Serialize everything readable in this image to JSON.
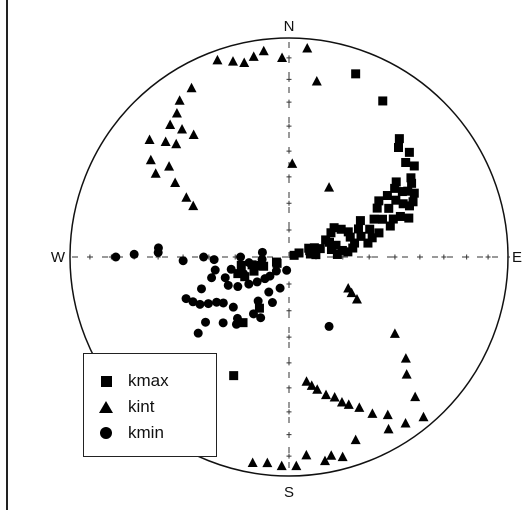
{
  "chart_data": {
    "type": "scatter",
    "projection": "lower-hemisphere stereonet",
    "directions": {
      "north": "N",
      "south": "S",
      "east": "E",
      "west": "W"
    },
    "series": [
      {
        "name": "kmax",
        "marker": "square",
        "points": [
          [
            20,
            12
          ],
          [
            31,
            18
          ],
          [
            43,
            27
          ],
          [
            45,
            30
          ],
          [
            49,
            28
          ],
          [
            54,
            30
          ],
          [
            51,
            32
          ],
          [
            57,
            34
          ],
          [
            59,
            35
          ],
          [
            61,
            38
          ],
          [
            63,
            36
          ],
          [
            66,
            38
          ],
          [
            60,
            40
          ],
          [
            57,
            42
          ],
          [
            55,
            40
          ],
          [
            62,
            44
          ],
          [
            65,
            42
          ],
          [
            67,
            40
          ],
          [
            70,
            45
          ],
          [
            72,
            42
          ],
          [
            70,
            48
          ],
          [
            73,
            50
          ],
          [
            64,
            48
          ],
          [
            58,
            46
          ],
          [
            68,
            52
          ],
          [
            75,
            55
          ],
          [
            77,
            58
          ],
          [
            80,
            60
          ],
          [
            71,
            58
          ],
          [
            66,
            55
          ],
          [
            61,
            52
          ],
          [
            58,
            50
          ],
          [
            63,
            60
          ],
          [
            68,
            62
          ],
          [
            74,
            62
          ],
          [
            78,
            65
          ],
          [
            82,
            66
          ],
          [
            85,
            68
          ],
          [
            72,
            66
          ],
          [
            67,
            66
          ],
          [
            62,
            68
          ],
          [
            57,
            70
          ],
          [
            76,
            72
          ],
          [
            80,
            74
          ],
          [
            87,
            72
          ],
          [
            70,
            74
          ],
          [
            83,
            70
          ],
          [
            65,
            75
          ],
          [
            60,
            72
          ],
          [
            75,
            78
          ],
          [
            78,
            80
          ],
          [
            85,
            80
          ],
          [
            70,
            80
          ],
          [
            82,
            82
          ],
          [
            73,
            82
          ],
          [
            66,
            82
          ],
          [
            68,
            86
          ],
          [
            72,
            88
          ],
          [
            68,
            95
          ],
          [
            62,
            95
          ],
          [
            70,
            100
          ],
          [
            74,
            102
          ],
          [
            68,
            104
          ],
          [
            66,
            108
          ],
          [
            78,
            104
          ],
          [
            80,
            108
          ],
          [
            72,
            110
          ],
          [
            35,
            120
          ],
          [
            25,
            140
          ],
          [
            30,
            112
          ]
        ],
        "note": "points given as [azimuth_deg, plunge_deg] estimated from plot"
      },
      {
        "name": "kint",
        "marker": "triangle",
        "points": [
          [
            340,
            5
          ],
          [
            344,
            8
          ],
          [
            347,
            10
          ],
          [
            330,
            12
          ],
          [
            325,
            14
          ],
          [
            322,
            18
          ],
          [
            318,
            20
          ],
          [
            313,
            24
          ],
          [
            307,
            32
          ],
          [
            303,
            38
          ],
          [
            300,
            45
          ],
          [
            298,
            49
          ],
          [
            310,
            18
          ],
          [
            305,
            24
          ],
          [
            302,
            29
          ],
          [
            320,
            25
          ],
          [
            322,
            30
          ],
          [
            315,
            28
          ],
          [
            9,
            20
          ],
          [
            2,
            55
          ],
          [
            5,
            5
          ],
          [
            358,
            10
          ],
          [
            353,
            6
          ],
          [
            350,
            8
          ],
          [
            30,
            60
          ],
          [
            140,
            5
          ],
          [
            145,
            8
          ],
          [
            150,
            10
          ],
          [
            148,
            16
          ],
          [
            152,
            20
          ],
          [
            155,
            25
          ],
          [
            158,
            28
          ],
          [
            160,
            30
          ],
          [
            162,
            33
          ],
          [
            165,
            35
          ],
          [
            168,
            38
          ],
          [
            170,
            40
          ],
          [
            172,
            42
          ],
          [
            175,
            10
          ],
          [
            168,
            8
          ],
          [
            165,
            6
          ],
          [
            170,
            6
          ],
          [
            160,
            12
          ],
          [
            178,
            5
          ],
          [
            182,
            5
          ],
          [
            186,
            6
          ],
          [
            190,
            5
          ],
          [
            138,
            15
          ],
          [
            135,
            25
          ],
          [
            131,
            30
          ],
          [
            126,
            40
          ],
          [
            122,
            60
          ],
          [
            120,
            63
          ],
          [
            118,
            65
          ]
        ]
      },
      {
        "name": "kmin",
        "marker": "circle",
        "points": [
          [
            230,
            45
          ],
          [
            232,
            50
          ],
          [
            225,
            55
          ],
          [
            220,
            60
          ],
          [
            228,
            62
          ],
          [
            235,
            60
          ],
          [
            238,
            58
          ],
          [
            240,
            55
          ],
          [
            242,
            52
          ],
          [
            245,
            50
          ],
          [
            248,
            48
          ],
          [
            250,
            55
          ],
          [
            255,
            60
          ],
          [
            252,
            65
          ],
          [
            245,
            65
          ],
          [
            240,
            68
          ],
          [
            236,
            72
          ],
          [
            232,
            75
          ],
          [
            228,
            78
          ],
          [
            225,
            80
          ],
          [
            222,
            83
          ],
          [
            215,
            70
          ],
          [
            210,
            75
          ],
          [
            212,
            65
          ],
          [
            218,
            58
          ],
          [
            205,
            65
          ],
          [
            200,
            72
          ],
          [
            196,
            78
          ],
          [
            190,
            85
          ],
          [
            260,
            62
          ],
          [
            258,
            68
          ],
          [
            262,
            75
          ],
          [
            265,
            80
          ],
          [
            250,
            72
          ],
          [
            255,
            78
          ],
          [
            270,
            72
          ],
          [
            268,
            62
          ],
          [
            270,
            58
          ],
          [
            268,
            50
          ],
          [
            272,
            40
          ],
          [
            271,
            30
          ],
          [
            270,
            22
          ],
          [
            274,
            40
          ],
          [
            280,
            80
          ],
          [
            150,
            60
          ]
        ]
      }
    ],
    "legend": {
      "position": "bottom-left",
      "entries": [
        "kmax",
        "kint",
        "kmin"
      ]
    }
  },
  "legend_labels": {
    "kmax": "kmax",
    "kint": "kint",
    "kmin": "kmin"
  }
}
